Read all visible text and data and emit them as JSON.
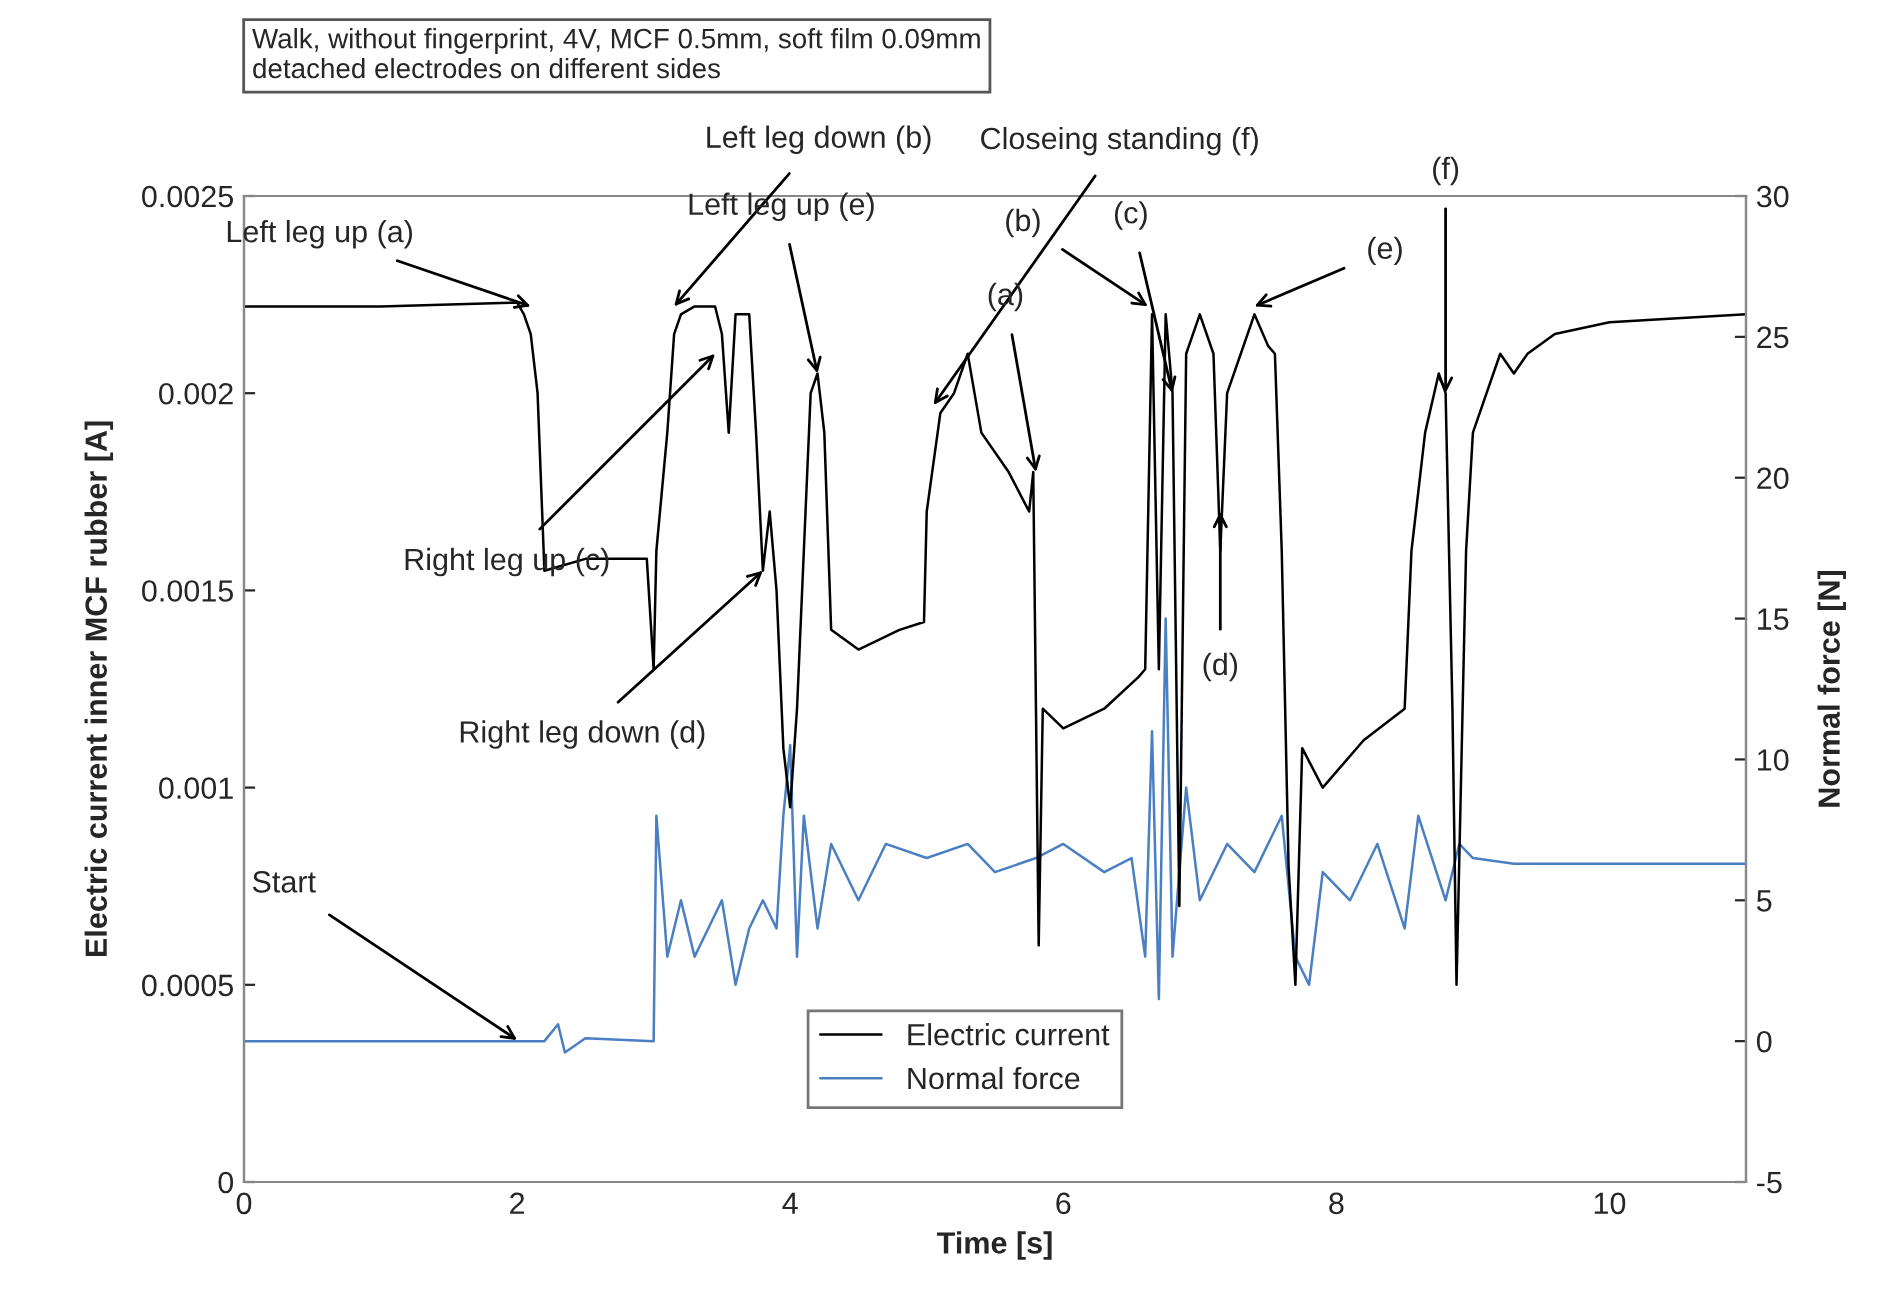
{
  "chart_data": {
    "type": "line",
    "title": "Walk, without fingerprint, 4V, MCF 0.5mm, soft film 0.09mm\ndetached electrodes on different sides",
    "xlabel": "Time [s]",
    "ylabel": "Electric current inner MCF rubber [A]",
    "y2label": "Normal force [N]",
    "xlim": [
      0,
      11
    ],
    "xticks": [
      0,
      2,
      4,
      6,
      8,
      10
    ],
    "ylim": [
      0,
      0.0025
    ],
    "yticks": [
      0,
      0.0005,
      0.001,
      0.0015,
      0.002,
      0.0025
    ],
    "y2lim": [
      -5,
      30
    ],
    "y2ticks": [
      -5,
      0,
      5,
      10,
      15,
      20,
      25,
      30
    ],
    "grid": false,
    "legend": "bottom",
    "marker": "none",
    "line_style": "solid",
    "series": [
      {
        "name": "Electric current",
        "color": "#000000",
        "x": [
          0,
          1,
          2.0,
          2.05,
          2.1,
          2.15,
          2.2,
          2.5,
          2.95,
          3.0,
          3.02,
          3.1,
          3.15,
          3.2,
          3.3,
          3.45,
          3.5,
          3.55,
          3.6,
          3.7,
          3.75,
          3.8,
          3.85,
          3.9,
          3.95,
          4.0,
          4.05,
          4.1,
          4.15,
          4.2,
          4.25,
          4.3,
          4.5,
          4.8,
          4.98,
          5.0,
          5.1,
          5.2,
          5.3,
          5.4,
          5.6,
          5.75,
          5.78,
          5.82,
          5.85,
          6.0,
          6.3,
          6.55,
          6.6,
          6.65,
          6.7,
          6.75,
          6.8,
          6.85,
          6.9,
          7.0,
          7.1,
          7.15,
          7.2,
          7.3,
          7.4,
          7.5,
          7.55,
          7.6,
          7.65,
          7.7,
          7.75,
          7.9,
          8.2,
          8.5,
          8.55,
          8.65,
          8.75,
          8.8,
          8.85,
          8.88,
          8.95,
          9.0,
          9.2,
          9.3,
          9.4,
          9.6,
          10,
          11
        ],
        "values": [
          0.00222,
          0.00222,
          0.00223,
          0.0022,
          0.00215,
          0.002,
          0.00155,
          0.00158,
          0.00158,
          0.0013,
          0.0016,
          0.0019,
          0.00215,
          0.0022,
          0.00222,
          0.00222,
          0.00215,
          0.0019,
          0.0022,
          0.0022,
          0.0019,
          0.00155,
          0.0017,
          0.0015,
          0.0011,
          0.00095,
          0.0012,
          0.0016,
          0.002,
          0.00205,
          0.0019,
          0.0014,
          0.00135,
          0.0014,
          0.00142,
          0.0017,
          0.00195,
          0.002,
          0.0021,
          0.0019,
          0.0018,
          0.0017,
          0.0018,
          0.0006,
          0.0012,
          0.00115,
          0.0012,
          0.00128,
          0.0013,
          0.0022,
          0.0013,
          0.0022,
          0.002,
          0.0007,
          0.0021,
          0.0022,
          0.0021,
          0.0016,
          0.002,
          0.0021,
          0.0022,
          0.00212,
          0.0021,
          0.0016,
          0.0008,
          0.0005,
          0.0011,
          0.001,
          0.00112,
          0.0012,
          0.0016,
          0.0019,
          0.00205,
          0.002,
          0.0012,
          0.0005,
          0.0016,
          0.0019,
          0.0021,
          0.00205,
          0.0021,
          0.00215,
          0.00218,
          0.0022
        ]
      },
      {
        "name": "Normal force",
        "color": "#4a7fc1",
        "axis": "y2",
        "x": [
          0,
          2.2,
          2.3,
          2.35,
          2.5,
          3.0,
          3.02,
          3.1,
          3.2,
          3.3,
          3.4,
          3.5,
          3.6,
          3.7,
          3.8,
          3.9,
          3.95,
          4.0,
          4.05,
          4.1,
          4.2,
          4.3,
          4.5,
          4.7,
          5.0,
          5.3,
          5.5,
          5.8,
          6.0,
          6.3,
          6.5,
          6.6,
          6.65,
          6.7,
          6.75,
          6.8,
          6.9,
          7.0,
          7.2,
          7.4,
          7.6,
          7.7,
          7.8,
          7.9,
          8.1,
          8.3,
          8.5,
          8.6,
          8.8,
          8.9,
          9.0,
          9.3,
          11
        ],
        "values": [
          0,
          0,
          0.6,
          -0.4,
          0.1,
          0,
          8,
          3,
          5,
          3,
          4,
          5,
          2,
          4,
          5,
          4,
          8,
          10.5,
          3,
          8,
          4,
          7,
          5,
          7,
          6.5,
          7,
          6,
          6.5,
          7,
          6,
          6.5,
          3,
          11,
          1.5,
          15,
          3,
          9,
          5,
          7,
          6,
          8,
          3,
          2,
          6,
          5,
          7,
          4,
          8,
          5,
          7,
          6.5,
          6.3,
          6.3
        ]
      }
    ],
    "annotations": [
      {
        "text": "Left leg up (a)",
        "x": 2.1,
        "y": 0.00222
      },
      {
        "text": "Left leg down (b)",
        "x": 3.15,
        "y": 0.00222
      },
      {
        "text": "Left leg up (e)",
        "x": 4.2,
        "y": 0.00205
      },
      {
        "text": "Closeing standing (f)",
        "x": 5.05,
        "y": 0.00197
      },
      {
        "text": "(a)",
        "x": 5.8,
        "y": 0.0018
      },
      {
        "text": "Right leg up (c)",
        "x": 3.45,
        "y": 0.0021
      },
      {
        "text": "Right leg down (d)",
        "x": 3.8,
        "y": 0.00155
      },
      {
        "text": "(b)",
        "x": 6.62,
        "y": 0.00222
      },
      {
        "text": "(c)",
        "x": 6.8,
        "y": 0.002
      },
      {
        "text": "(d)",
        "x": 7.15,
        "y": 0.0017
      },
      {
        "text": "(e)",
        "x": 7.4,
        "y": 0.00222
      },
      {
        "text": "(f)",
        "x": 8.8,
        "y": 0.002
      },
      {
        "text": "Start",
        "x": 2.0,
        "y": 0.00036
      }
    ]
  }
}
